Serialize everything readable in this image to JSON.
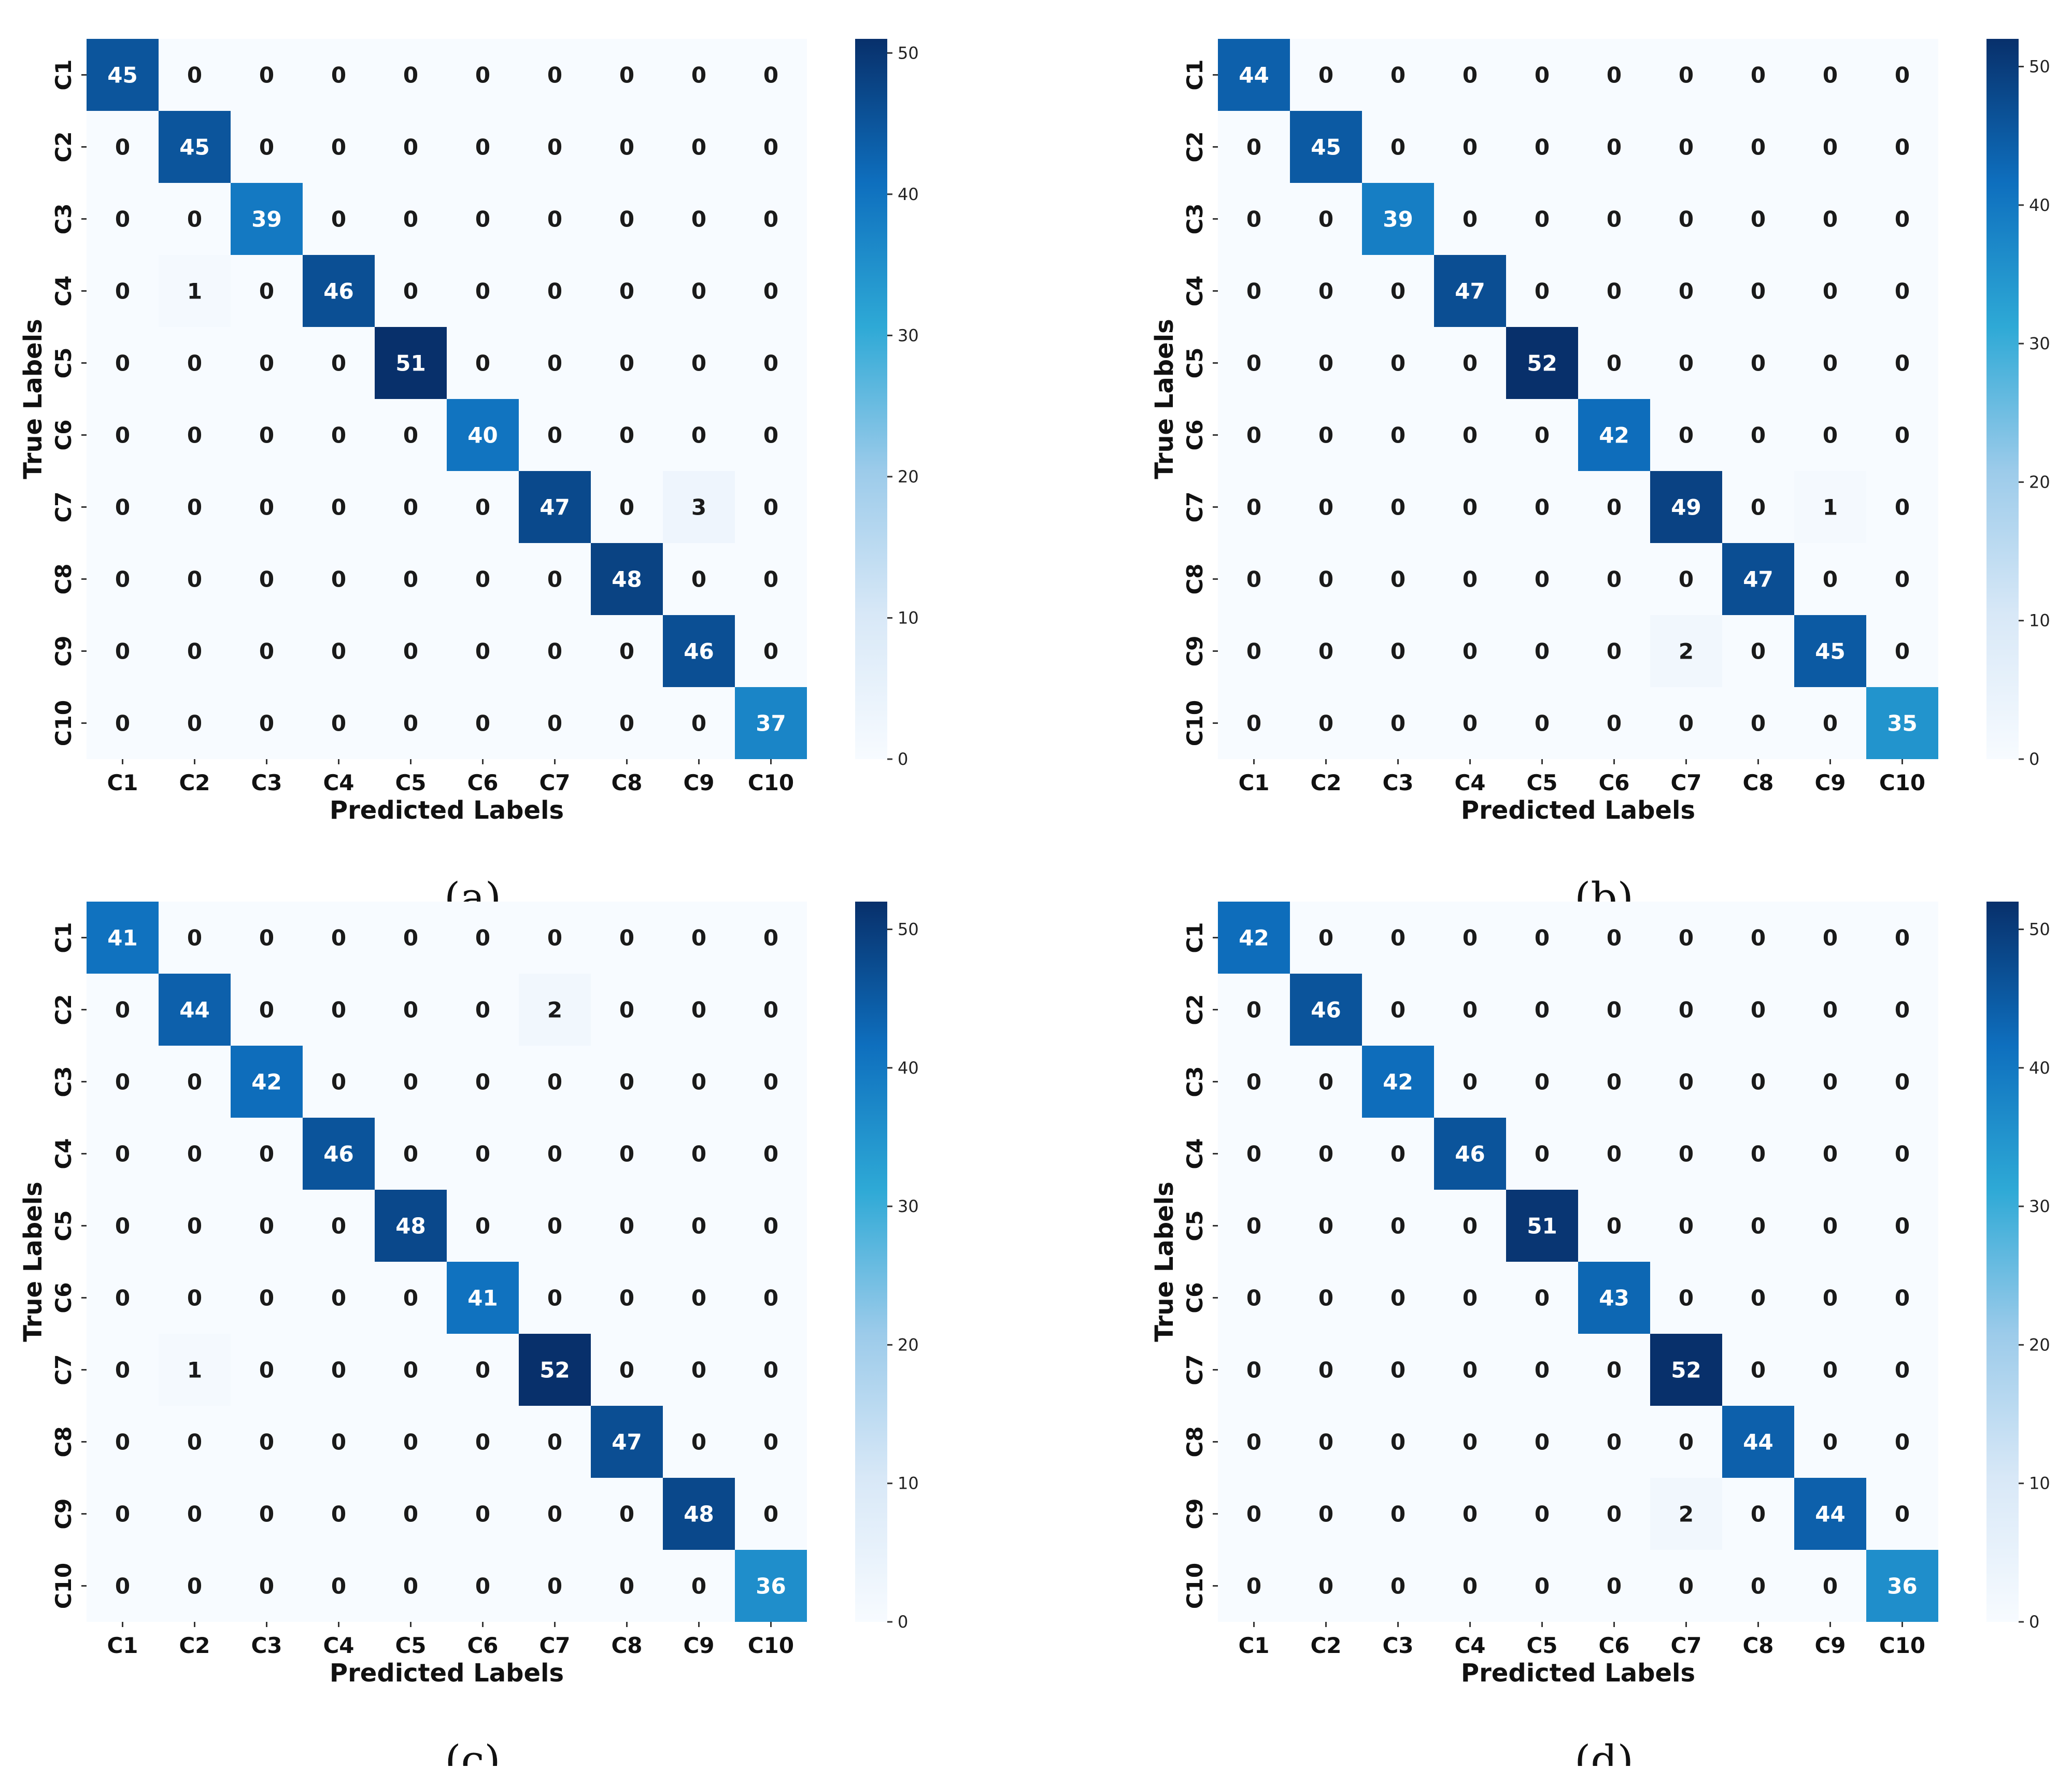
{
  "chart_data": [
    {
      "type": "heatmap",
      "panel": "(a)",
      "xlabel": "Predicted Labels",
      "ylabel": "True Labels",
      "categories": [
        "C1",
        "C2",
        "C3",
        "C4",
        "C5",
        "C6",
        "C7",
        "C8",
        "C9",
        "C10"
      ],
      "colorbar_ticks": [
        0,
        10,
        20,
        30,
        40,
        50
      ],
      "vmin": 0,
      "vmax": 51,
      "matrix": [
        [
          45,
          0,
          0,
          0,
          0,
          0,
          0,
          0,
          0,
          0
        ],
        [
          0,
          45,
          0,
          0,
          0,
          0,
          0,
          0,
          0,
          0
        ],
        [
          0,
          0,
          39,
          0,
          0,
          0,
          0,
          0,
          0,
          0
        ],
        [
          0,
          1,
          0,
          46,
          0,
          0,
          0,
          0,
          0,
          0
        ],
        [
          0,
          0,
          0,
          0,
          51,
          0,
          0,
          0,
          0,
          0
        ],
        [
          0,
          0,
          0,
          0,
          0,
          40,
          0,
          0,
          0,
          0
        ],
        [
          0,
          0,
          0,
          0,
          0,
          0,
          47,
          0,
          3,
          0
        ],
        [
          0,
          0,
          0,
          0,
          0,
          0,
          0,
          48,
          0,
          0
        ],
        [
          0,
          0,
          0,
          0,
          0,
          0,
          0,
          0,
          46,
          0
        ],
        [
          0,
          0,
          0,
          0,
          0,
          0,
          0,
          0,
          0,
          37
        ]
      ]
    },
    {
      "type": "heatmap",
      "panel": "(b)",
      "xlabel": "Predicted Labels",
      "ylabel": "True Labels",
      "categories": [
        "C1",
        "C2",
        "C3",
        "C4",
        "C5",
        "C6",
        "C7",
        "C8",
        "C9",
        "C10"
      ],
      "colorbar_ticks": [
        0,
        10,
        20,
        30,
        40,
        50
      ],
      "vmin": 0,
      "vmax": 52,
      "matrix": [
        [
          44,
          0,
          0,
          0,
          0,
          0,
          0,
          0,
          0,
          0
        ],
        [
          0,
          45,
          0,
          0,
          0,
          0,
          0,
          0,
          0,
          0
        ],
        [
          0,
          0,
          39,
          0,
          0,
          0,
          0,
          0,
          0,
          0
        ],
        [
          0,
          0,
          0,
          47,
          0,
          0,
          0,
          0,
          0,
          0
        ],
        [
          0,
          0,
          0,
          0,
          52,
          0,
          0,
          0,
          0,
          0
        ],
        [
          0,
          0,
          0,
          0,
          0,
          42,
          0,
          0,
          0,
          0
        ],
        [
          0,
          0,
          0,
          0,
          0,
          0,
          49,
          0,
          1,
          0
        ],
        [
          0,
          0,
          0,
          0,
          0,
          0,
          0,
          47,
          0,
          0
        ],
        [
          0,
          0,
          0,
          0,
          0,
          0,
          2,
          0,
          45,
          0
        ],
        [
          0,
          0,
          0,
          0,
          0,
          0,
          0,
          0,
          0,
          35
        ]
      ]
    },
    {
      "type": "heatmap",
      "panel": "(c)",
      "xlabel": "Predicted Labels",
      "ylabel": "True Labels",
      "categories": [
        "C1",
        "C2",
        "C3",
        "C4",
        "C5",
        "C6",
        "C7",
        "C8",
        "C9",
        "C10"
      ],
      "colorbar_ticks": [
        0,
        10,
        20,
        30,
        40,
        50
      ],
      "vmin": 0,
      "vmax": 52,
      "matrix": [
        [
          41,
          0,
          0,
          0,
          0,
          0,
          0,
          0,
          0,
          0
        ],
        [
          0,
          44,
          0,
          0,
          0,
          0,
          2,
          0,
          0,
          0
        ],
        [
          0,
          0,
          42,
          0,
          0,
          0,
          0,
          0,
          0,
          0
        ],
        [
          0,
          0,
          0,
          46,
          0,
          0,
          0,
          0,
          0,
          0
        ],
        [
          0,
          0,
          0,
          0,
          48,
          0,
          0,
          0,
          0,
          0
        ],
        [
          0,
          0,
          0,
          0,
          0,
          41,
          0,
          0,
          0,
          0
        ],
        [
          0,
          1,
          0,
          0,
          0,
          0,
          52,
          0,
          0,
          0
        ],
        [
          0,
          0,
          0,
          0,
          0,
          0,
          0,
          47,
          0,
          0
        ],
        [
          0,
          0,
          0,
          0,
          0,
          0,
          0,
          0,
          48,
          0
        ],
        [
          0,
          0,
          0,
          0,
          0,
          0,
          0,
          0,
          0,
          36
        ]
      ]
    },
    {
      "type": "heatmap",
      "panel": "(d)",
      "xlabel": "Predicted Labels",
      "ylabel": "True Labels",
      "categories": [
        "C1",
        "C2",
        "C3",
        "C4",
        "C5",
        "C6",
        "C7",
        "C8",
        "C9",
        "C10"
      ],
      "colorbar_ticks": [
        0,
        10,
        20,
        30,
        40,
        50
      ],
      "vmin": 0,
      "vmax": 52,
      "matrix": [
        [
          42,
          0,
          0,
          0,
          0,
          0,
          0,
          0,
          0,
          0
        ],
        [
          0,
          46,
          0,
          0,
          0,
          0,
          0,
          0,
          0,
          0
        ],
        [
          0,
          0,
          42,
          0,
          0,
          0,
          0,
          0,
          0,
          0
        ],
        [
          0,
          0,
          0,
          46,
          0,
          0,
          0,
          0,
          0,
          0
        ],
        [
          0,
          0,
          0,
          0,
          51,
          0,
          0,
          0,
          0,
          0
        ],
        [
          0,
          0,
          0,
          0,
          0,
          43,
          0,
          0,
          0,
          0
        ],
        [
          0,
          0,
          0,
          0,
          0,
          0,
          52,
          0,
          0,
          0
        ],
        [
          0,
          0,
          0,
          0,
          0,
          0,
          0,
          44,
          0,
          0
        ],
        [
          0,
          0,
          0,
          0,
          0,
          0,
          2,
          0,
          44,
          0
        ],
        [
          0,
          0,
          0,
          0,
          0,
          0,
          0,
          0,
          0,
          36
        ]
      ]
    }
  ]
}
